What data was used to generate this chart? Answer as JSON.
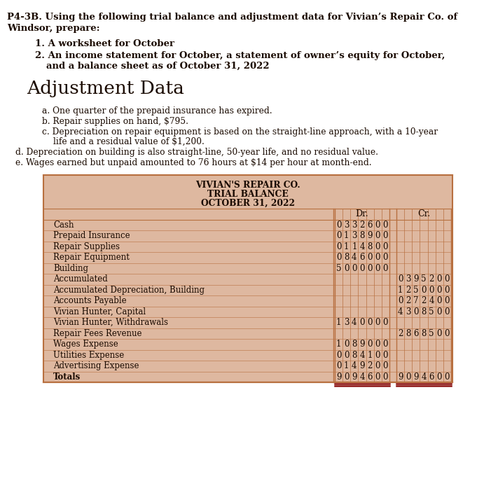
{
  "title_line1": "P4-3B. Using the following trial balance and adjustment data for Vivian’s Repair Co. of",
  "title_line2": "Windsor, prepare:",
  "item1": "1. A worksheet for October",
  "item2a": "2. An income statement for October, a statement of owner’s equity for October,",
  "item2b": "and a balance sheet as of October 31, 2022",
  "adj_title": "Adjustment Data",
  "adj_a": "a. One quarter of the prepaid insurance has expired.",
  "adj_b": "b. Repair supplies on hand, $795.",
  "adj_c1": "c. Depreciation on repair equipment is based on the straight-line approach, with a 10-year",
  "adj_c2": "life and a residual value of $1,200.",
  "adj_d": "d. Depreciation on building is also straight-line, 50-year life, and no residual value.",
  "adj_e": "e. Wages earned but unpaid amounted to 76 hours at $14 per hour at month-end.",
  "tbl_title1": "VIVIAN'S REPAIR CO.",
  "tbl_title2": "TRIAL BALANCE",
  "tbl_title3": "OCTOBER 31, 2022",
  "table_bg": "#deb8a0",
  "table_border": "#b87040",
  "page_bg": "#ffffff",
  "text_color": "#1a0a00",
  "rows": [
    {
      "account": "Cash",
      "dr": "3326",
      "cr": ""
    },
    {
      "account": "Prepaid Insurance",
      "dr": "1389",
      "cr": ""
    },
    {
      "account": "Repair Supplies",
      "dr": "1148",
      "cr": ""
    },
    {
      "account": "Repair Equipment",
      "dr": "8460",
      "cr": ""
    },
    {
      "account": "Building",
      "dr": "50000",
      "cr": ""
    },
    {
      "account": "Accumulated",
      "dr": "",
      "cr": "3952"
    },
    {
      "account": "Accumulated Depreciation, Building",
      "dr": "",
      "cr": "12500"
    },
    {
      "account": "Accounts Payable",
      "dr": "",
      "cr": "2724"
    },
    {
      "account": "Vivian Hunter, Capital",
      "dr": "",
      "cr": "43085"
    },
    {
      "account": "Vivian Hunter, Withdrawals",
      "dr": "13400",
      "cr": ""
    },
    {
      "account": "Repair Fees Revenue",
      "dr": "",
      "cr": "28685"
    },
    {
      "account": "Wages Expense",
      "dr": "10890",
      "cr": ""
    },
    {
      "account": "Utilities Expense",
      "dr": "841",
      "cr": ""
    },
    {
      "account": "Advertising Expense",
      "dr": "1492",
      "cr": ""
    },
    {
      "account": "Totals",
      "dr": "90946",
      "cr": "90946"
    }
  ]
}
